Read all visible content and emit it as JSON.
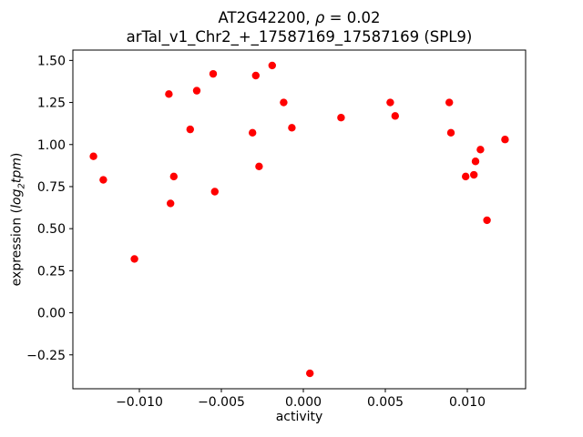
{
  "chart_data": {
    "type": "scatter",
    "title_parts": {
      "pre": "AT2G42200, ",
      "rho": "ρ",
      "post": " = 0.02"
    },
    "subtitle": "arTal_v1_Chr2_+_17587169_17587169 (SPL9)",
    "xlabel": "activity",
    "ylabel_parts": {
      "prefix": "expression (",
      "log": "log",
      "sub": "2",
      "tpm": "tpm",
      "suffix": ")"
    },
    "marker_color": "#ff0000",
    "axis_color": "#000000",
    "grid": false,
    "legend": false,
    "xlim": [
      -0.014055,
      0.013555
    ],
    "ylim": [
      -0.4515,
      1.5615
    ],
    "xticks": [
      -0.01,
      -0.005,
      0.0,
      0.005,
      0.01
    ],
    "xtick_labels": [
      "−0.010",
      "−0.005",
      "0.000",
      "0.005",
      "0.010"
    ],
    "yticks": [
      -0.25,
      0.0,
      0.25,
      0.5,
      0.75,
      1.0,
      1.25,
      1.5
    ],
    "ytick_labels": [
      "−0.25",
      "0.00",
      "0.25",
      "0.50",
      "0.75",
      "1.00",
      "1.25",
      "1.50"
    ],
    "points": [
      [
        -0.0128,
        0.93
      ],
      [
        -0.0122,
        0.79
      ],
      [
        -0.0103,
        0.32
      ],
      [
        -0.0082,
        1.3
      ],
      [
        -0.0081,
        0.65
      ],
      [
        -0.0079,
        0.81
      ],
      [
        -0.0069,
        1.09
      ],
      [
        -0.0065,
        1.32
      ],
      [
        -0.0055,
        1.42
      ],
      [
        -0.0054,
        0.72
      ],
      [
        -0.0031,
        1.07
      ],
      [
        -0.0029,
        1.41
      ],
      [
        -0.0027,
        0.87
      ],
      [
        -0.0019,
        1.47
      ],
      [
        -0.0012,
        1.25
      ],
      [
        -0.0007,
        1.1
      ],
      [
        0.0004,
        -0.36
      ],
      [
        0.0023,
        1.16
      ],
      [
        0.0053,
        1.25
      ],
      [
        0.0056,
        1.17
      ],
      [
        0.0089,
        1.25
      ],
      [
        0.009,
        1.07
      ],
      [
        0.0099,
        0.81
      ],
      [
        0.0104,
        0.82
      ],
      [
        0.0105,
        0.9
      ],
      [
        0.0108,
        0.97
      ],
      [
        0.0112,
        0.55
      ],
      [
        0.0123,
        1.03
      ]
    ]
  }
}
